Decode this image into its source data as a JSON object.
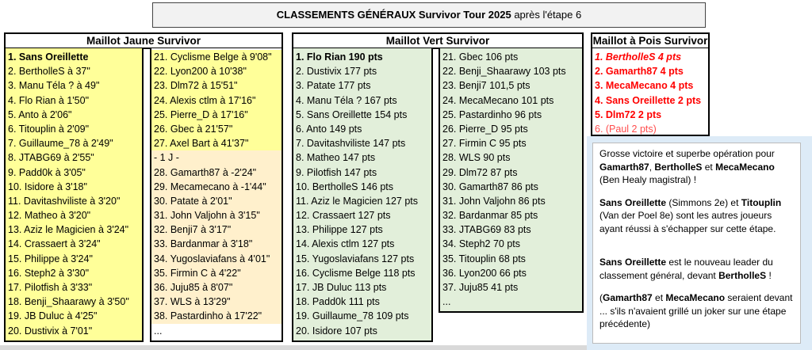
{
  "title": {
    "bold": "CLASSEMENTS GÉNÉRAUX Survivor Tour 2025",
    "normal": " après l'étape 6"
  },
  "jaune": {
    "header": "Maillot Jaune Survivor",
    "left": [
      "1. Sans Oreillette",
      "2. BertholleS à 37\"",
      "3. Manu Téla ? à 49\"",
      "4. Flo Rian à 1'50\"",
      "5. Anto à 2'06\"",
      "6. Titouplin à 2'09\"",
      "7. Guillaume_78 à 2'49\"",
      "8. JTABG69 à 2'55\"",
      "9. Padd0k à 3'05\"",
      "10. Isidore à 3'18\"",
      "11. Davitashviliste à 3'20\"",
      "12. Matheo à 3'20\"",
      "13. Aziz le Magicien à 3'24\"",
      "14. Crassaert à 3'24\"",
      "15. Philippe à 3'24\"",
      "16. Steph2 à 3'30\"",
      "17. Pilotfish à 3'33\"",
      "18. Benji_Shaarawy à 3'50\"",
      "19. JB Duluc à 4'25\"",
      "20. Dustivix à 7'01\""
    ],
    "right": [
      "21. Cyclisme Belge à 9'08\"",
      "22. Lyon200 à 10'38\"",
      "23. Dlm72 à 15'51\"",
      "24. Alexis ctlm à 17'16\"",
      "25. Pierre_D à 17'16\"",
      "26. Gbec à 21'57\"",
      "27. Axel Bart à 41'37\"",
      "- 1 J -",
      "28. Gamarth87 à -2'24\"",
      "29. Mecamecano à -1'44\"",
      "30. Patate à 2'01\"",
      "31. John Valjohn à 3'15\"",
      "32. Benji7 à 3'17\"",
      "33. Bardanmar à 3'18\"",
      "34. Yugoslaviafans à 4'01\"",
      "35. Firmin C à 4'22\"",
      "36. Juju85 à 8'07\"",
      "37. WLS à 13'29\"",
      "38. Pastardinho à 17'22\"",
      "..."
    ]
  },
  "vert": {
    "header": "Maillot Vert Survivor",
    "left": [
      "1. Flo Rian 190 pts",
      "2. Dustivix 177 pts",
      "3. Patate 177 pts",
      "4. Manu Téla ? 167 pts",
      "5. Sans Oreillette 154 pts",
      "6. Anto 149 pts",
      "7. Davitashviliste 147 pts",
      "8. Matheo 147 pts",
      "9. Pilotfish 147 pts",
      "10. BertholleS 146 pts",
      "11. Aziz le Magicien 127 pts",
      "12. Crassaert 127 pts",
      "13. Philippe 127 pts",
      "14. Alexis ctlm 127 pts",
      "15. Yugoslaviafans 127 pts",
      "16. Cyclisme Belge 118 pts",
      "17. JB Duluc 113 pts",
      "18. Padd0k 111 pts",
      "19. Guillaume_78 109 pts",
      "20. Isidore 107 pts"
    ],
    "right": [
      "21. Gbec 106 pts",
      "22. Benji_Shaarawy 103 pts",
      "23. Benji7 101,5 pts",
      "24. MecaMecano 101 pts",
      "25. Pastardinho 96 pts",
      "26. Pierre_D 95 pts",
      "27. Firmin C 95 pts",
      "28. WLS 90 pts",
      "29. Dlm72 87 pts",
      "30. Gamarth87 86 pts",
      "31. John Valjohn 86 pts",
      "32. Bardanmar 85 pts",
      "33. JTABG69 83 pts",
      "34. Steph2 70 pts",
      "35. Titouplin 68 pts",
      "36. Lyon200 66 pts",
      "37. Juju85 41 pts",
      "..."
    ]
  },
  "pois": {
    "header": "Maillot à Pois Survivor",
    "items": [
      "1. BertholleS 4 pts",
      "2. Gamarth87 4 pts",
      "3. MecaMecano 4 pts",
      "4. Sans Oreillette 2 pts",
      "5. Dlm72 2 pts",
      "6. (Paul 2 pts)"
    ]
  },
  "colors": {
    "jaune": "#ffff99",
    "jaune_hors": "#fff0cc",
    "vert": "#e2efda",
    "pois": "#ff0000",
    "note_bg": "#ddebf7"
  },
  "note": [
    [
      {
        "t": "Grosse victoire et superbe opération pour "
      },
      {
        "t": "Gamarth87",
        "b": true
      },
      {
        "t": ", "
      },
      {
        "t": "BertholleS",
        "b": true
      },
      {
        "t": " et "
      },
      {
        "t": "MecaMecano",
        "b": true
      },
      {
        "t": " (Ben Healy magistral) !"
      }
    ],
    [
      {
        "t": "Sans Oreillette",
        "b": true
      },
      {
        "t": " (Simmons 2e) et "
      },
      {
        "t": "Titouplin",
        "b": true
      },
      {
        "t": " (Van der Poel 8e) sont les autres joueurs ayant réussi à s'échapper sur cette étape."
      }
    ],
    [
      {
        "t": "Sans Oreillette",
        "b": true
      },
      {
        "t": " est le nouveau leader du classement général, devant "
      },
      {
        "t": "BertholleS",
        "b": true
      },
      {
        "t": " !"
      }
    ],
    [
      {
        "t": "("
      },
      {
        "t": "Gamarth87",
        "b": true
      },
      {
        "t": " et "
      },
      {
        "t": "MecaMecano",
        "b": true
      },
      {
        "t": " seraient devant ... s'ils n'avaient grillé un joker sur une étape précédente)"
      }
    ]
  ]
}
